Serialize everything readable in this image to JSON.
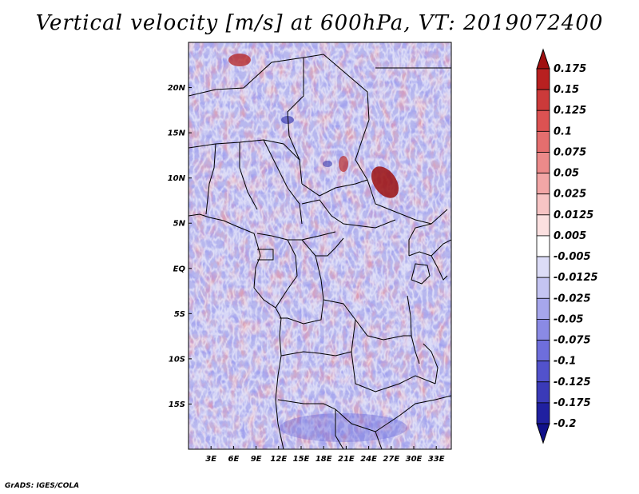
{
  "title": "Vertical velocity [m/s] at 600hPa, VT: 2019072400",
  "credit": "GrADS: IGES/COLA",
  "map": {
    "lat_labels": [
      "20N",
      "15N",
      "10N",
      "5N",
      "EQ",
      "5S",
      "10S",
      "15S"
    ],
    "lat_values": [
      20,
      15,
      10,
      5,
      0,
      -5,
      -10,
      -15
    ],
    "lon_labels": [
      "3E",
      "6E",
      "9E",
      "12E",
      "15E",
      "18E",
      "21E",
      "24E",
      "27E",
      "30E",
      "33E"
    ],
    "lon_values": [
      3,
      6,
      9,
      12,
      15,
      18,
      21,
      24,
      27,
      30,
      33
    ],
    "lon_range": [
      0,
      35
    ],
    "lat_range": [
      -20,
      25
    ]
  },
  "colorbar": {
    "labels": [
      "0.175",
      "0.15",
      "0.125",
      "0.1",
      "0.075",
      "0.05",
      "0.025",
      "0.0125",
      "0.005",
      "-0.005",
      "-0.0125",
      "-0.025",
      "-0.05",
      "-0.075",
      "-0.1",
      "-0.125",
      "-0.175",
      "-0.2"
    ],
    "colors": [
      "#a01010",
      "#b82020",
      "#cc3a3a",
      "#dc5252",
      "#e56e6e",
      "#ec8a8a",
      "#f2a6a6",
      "#f7c4c4",
      "#fbe0e0",
      "#ffffff",
      "#dcdcf7",
      "#c4c4f2",
      "#a6a6ec",
      "#8a8ae5",
      "#6e6edc",
      "#5252cc",
      "#3a3ab8",
      "#2020a0",
      "#10108a"
    ]
  }
}
